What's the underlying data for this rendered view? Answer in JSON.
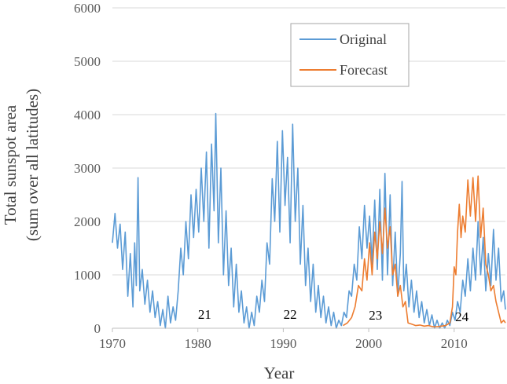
{
  "chart_data": {
    "type": "line",
    "title": "",
    "xlabel": "Year",
    "ylabel_lines": [
      "Total sunspot area",
      "(sum over all latitudes)"
    ],
    "xlim": [
      1970,
      2016
    ],
    "ylim": [
      0,
      6000
    ],
    "x_ticks": [
      1970,
      1980,
      1990,
      2000,
      2010
    ],
    "y_ticks": [
      0,
      1000,
      2000,
      3000,
      4000,
      5000,
      6000
    ],
    "grid": "horizontal",
    "legend_position": "top-right",
    "series": [
      {
        "name": "Original",
        "color": "#5b9bd5",
        "points": [
          [
            1970.0,
            1600
          ],
          [
            1970.3,
            2150
          ],
          [
            1970.6,
            1500
          ],
          [
            1970.9,
            1950
          ],
          [
            1971.2,
            1100
          ],
          [
            1971.5,
            1800
          ],
          [
            1971.8,
            600
          ],
          [
            1972.1,
            1400
          ],
          [
            1972.4,
            400
          ],
          [
            1972.6,
            1600
          ],
          [
            1972.8,
            800
          ],
          [
            1973.0,
            2820
          ],
          [
            1973.2,
            700
          ],
          [
            1973.5,
            1100
          ],
          [
            1973.8,
            450
          ],
          [
            1974.1,
            900
          ],
          [
            1974.4,
            300
          ],
          [
            1974.7,
            700
          ],
          [
            1975.0,
            200
          ],
          [
            1975.3,
            500
          ],
          [
            1975.6,
            50
          ],
          [
            1975.9,
            350
          ],
          [
            1976.2,
            0
          ],
          [
            1976.5,
            600
          ],
          [
            1976.8,
            100
          ],
          [
            1977.1,
            400
          ],
          [
            1977.4,
            150
          ],
          [
            1977.7,
            700
          ],
          [
            1978.0,
            1500
          ],
          [
            1978.3,
            1000
          ],
          [
            1978.6,
            2000
          ],
          [
            1978.9,
            1300
          ],
          [
            1979.2,
            2500
          ],
          [
            1979.5,
            1700
          ],
          [
            1979.8,
            2600
          ],
          [
            1980.1,
            1800
          ],
          [
            1980.4,
            3000
          ],
          [
            1980.7,
            2000
          ],
          [
            1981.0,
            3300
          ],
          [
            1981.3,
            1500
          ],
          [
            1981.6,
            3450
          ],
          [
            1981.9,
            2200
          ],
          [
            1982.1,
            4020
          ],
          [
            1982.4,
            1600
          ],
          [
            1982.7,
            3000
          ],
          [
            1983.0,
            1000
          ],
          [
            1983.3,
            2200
          ],
          [
            1983.6,
            800
          ],
          [
            1983.9,
            1500
          ],
          [
            1984.2,
            400
          ],
          [
            1984.5,
            1200
          ],
          [
            1984.8,
            300
          ],
          [
            1985.1,
            700
          ],
          [
            1985.4,
            100
          ],
          [
            1985.7,
            400
          ],
          [
            1986.0,
            0
          ],
          [
            1986.3,
            300
          ],
          [
            1986.6,
            50
          ],
          [
            1986.9,
            600
          ],
          [
            1987.2,
            300
          ],
          [
            1987.5,
            900
          ],
          [
            1987.8,
            500
          ],
          [
            1988.1,
            1600
          ],
          [
            1988.4,
            1200
          ],
          [
            1988.7,
            2800
          ],
          [
            1989.0,
            2000
          ],
          [
            1989.3,
            3500
          ],
          [
            1989.6,
            1800
          ],
          [
            1989.9,
            3700
          ],
          [
            1990.2,
            2300
          ],
          [
            1990.5,
            3200
          ],
          [
            1990.8,
            1600
          ],
          [
            1991.1,
            3820
          ],
          [
            1991.4,
            2000
          ],
          [
            1991.7,
            3000
          ],
          [
            1992.0,
            1200
          ],
          [
            1992.3,
            2300
          ],
          [
            1992.6,
            800
          ],
          [
            1992.9,
            1500
          ],
          [
            1993.2,
            500
          ],
          [
            1993.5,
            1200
          ],
          [
            1993.8,
            300
          ],
          [
            1994.1,
            800
          ],
          [
            1994.4,
            200
          ],
          [
            1994.7,
            600
          ],
          [
            1995.0,
            100
          ],
          [
            1995.3,
            400
          ],
          [
            1995.6,
            50
          ],
          [
            1995.9,
            300
          ],
          [
            1996.2,
            0
          ],
          [
            1996.5,
            150
          ],
          [
            1996.8,
            50
          ],
          [
            1997.1,
            300
          ],
          [
            1997.4,
            200
          ],
          [
            1997.7,
            700
          ],
          [
            1998.0,
            600
          ],
          [
            1998.3,
            1200
          ],
          [
            1998.6,
            900
          ],
          [
            1998.9,
            1900
          ],
          [
            1999.2,
            1300
          ],
          [
            1999.5,
            2300
          ],
          [
            1999.8,
            1500
          ],
          [
            2000.1,
            2100
          ],
          [
            2000.4,
            1200
          ],
          [
            2000.7,
            2400
          ],
          [
            2001.0,
            1100
          ],
          [
            2001.3,
            2600
          ],
          [
            2001.6,
            900
          ],
          [
            2001.9,
            2900
          ],
          [
            2002.2,
            1000
          ],
          [
            2002.5,
            2500
          ],
          [
            2002.8,
            800
          ],
          [
            2003.1,
            1800
          ],
          [
            2003.4,
            600
          ],
          [
            2003.7,
            1400
          ],
          [
            2003.9,
            2750
          ],
          [
            2004.1,
            700
          ],
          [
            2004.4,
            1200
          ],
          [
            2004.7,
            400
          ],
          [
            2005.0,
            900
          ],
          [
            2005.3,
            300
          ],
          [
            2005.6,
            700
          ],
          [
            2005.9,
            200
          ],
          [
            2006.2,
            500
          ],
          [
            2006.5,
            100
          ],
          [
            2006.8,
            350
          ],
          [
            2007.1,
            50
          ],
          [
            2007.4,
            250
          ],
          [
            2007.7,
            0
          ],
          [
            2008.0,
            150
          ],
          [
            2008.3,
            0
          ],
          [
            2008.6,
            100
          ],
          [
            2008.9,
            0
          ],
          [
            2009.2,
            150
          ],
          [
            2009.5,
            50
          ],
          [
            2009.8,
            300
          ],
          [
            2010.1,
            150
          ],
          [
            2010.4,
            500
          ],
          [
            2010.7,
            300
          ],
          [
            2011.0,
            900
          ],
          [
            2011.3,
            600
          ],
          [
            2011.6,
            1300
          ],
          [
            2011.9,
            700
          ],
          [
            2012.2,
            1500
          ],
          [
            2012.5,
            900
          ],
          [
            2012.8,
            2000
          ],
          [
            2013.1,
            1000
          ],
          [
            2013.4,
            1700
          ],
          [
            2013.7,
            700
          ],
          [
            2014.0,
            1400
          ],
          [
            2014.3,
            800
          ],
          [
            2014.6,
            1850
          ],
          [
            2014.9,
            900
          ],
          [
            2015.2,
            1500
          ],
          [
            2015.5,
            500
          ],
          [
            2015.8,
            700
          ],
          [
            2016.0,
            350
          ]
        ]
      },
      {
        "name": "Forecast",
        "color": "#ed7d31",
        "points": [
          [
            1997.0,
            50
          ],
          [
            1997.5,
            100
          ],
          [
            1998.0,
            200
          ],
          [
            1998.4,
            400
          ],
          [
            1998.8,
            800
          ],
          [
            1999.2,
            700
          ],
          [
            1999.5,
            1300
          ],
          [
            1999.8,
            900
          ],
          [
            2000.1,
            1600
          ],
          [
            2000.4,
            1000
          ],
          [
            2000.7,
            1800
          ],
          [
            2001.0,
            1300
          ],
          [
            2001.3,
            2000
          ],
          [
            2001.6,
            1400
          ],
          [
            2001.9,
            2250
          ],
          [
            2002.2,
            1500
          ],
          [
            2002.5,
            1900
          ],
          [
            2002.8,
            1000
          ],
          [
            2003.1,
            1200
          ],
          [
            2003.4,
            600
          ],
          [
            2003.7,
            800
          ],
          [
            2004.0,
            400
          ],
          [
            2004.3,
            500
          ],
          [
            2004.6,
            100
          ],
          [
            2005.0,
            80
          ],
          [
            2005.5,
            50
          ],
          [
            2006.0,
            60
          ],
          [
            2006.5,
            40
          ],
          [
            2007.0,
            50
          ],
          [
            2007.5,
            30
          ],
          [
            2008.0,
            30
          ],
          [
            2008.5,
            40
          ],
          [
            2009.0,
            50
          ],
          [
            2009.5,
            100
          ],
          [
            2009.8,
            400
          ],
          [
            2010.0,
            1150
          ],
          [
            2010.2,
            1000
          ],
          [
            2010.4,
            1800
          ],
          [
            2010.6,
            2320
          ],
          [
            2010.8,
            1700
          ],
          [
            2011.0,
            2100
          ],
          [
            2011.3,
            1800
          ],
          [
            2011.6,
            2780
          ],
          [
            2011.9,
            2100
          ],
          [
            2012.2,
            2820
          ],
          [
            2012.5,
            2000
          ],
          [
            2012.8,
            2850
          ],
          [
            2013.1,
            1700
          ],
          [
            2013.4,
            2250
          ],
          [
            2013.7,
            1200
          ],
          [
            2014.0,
            1000
          ],
          [
            2014.3,
            700
          ],
          [
            2014.6,
            800
          ],
          [
            2014.9,
            500
          ],
          [
            2015.2,
            300
          ],
          [
            2015.5,
            100
          ],
          [
            2015.8,
            150
          ],
          [
            2016.0,
            100
          ]
        ]
      }
    ],
    "annotations": [
      {
        "text": "21",
        "x": 1980.8,
        "y": 180
      },
      {
        "text": "22",
        "x": 1990.8,
        "y": 180
      },
      {
        "text": "23",
        "x": 2000.8,
        "y": 160
      },
      {
        "text": "24",
        "x": 2010.9,
        "y": 130
      }
    ]
  }
}
